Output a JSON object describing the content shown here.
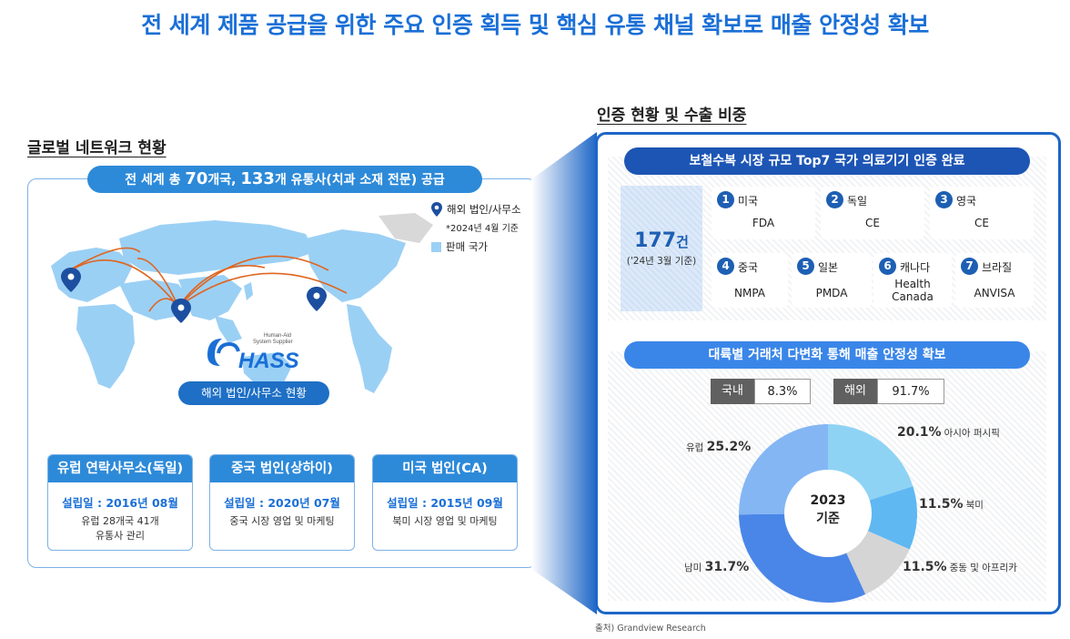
{
  "title": "전 세계 제품 공급을 위한 주요 인증 획득 및 핵심 유통 채널 확보로 매출 안정성 확보",
  "left": {
    "section_title": "글로벌 네트워크 현황",
    "supply_prefix": "전 세계 총 ",
    "countries": "70",
    "countries_unit": "개국, ",
    "distributors": "133",
    "supply_suffix": "개 유통사(치과 소재 전문) 공급",
    "legend_office": "해외 법인/사무소",
    "legend_note": "*2024년 4월 기준",
    "legend_sales": "판매 국가",
    "logo_tagline_1": "Human-Aid",
    "logo_tagline_2": "System Supplier",
    "logo_text": "HASS",
    "office_label": "해외 법인/사무소 현황",
    "offices": [
      {
        "name": "유럽 연락사무소(독일)",
        "date": "설립일 : 2016년 08월",
        "desc1": "유럽 28개국 41개",
        "desc2": "유통사 관리"
      },
      {
        "name": "중국 법인(상하이)",
        "date": "설립일 : 2020년 07월",
        "desc1": "중국 시장 영업 및 마케팅",
        "desc2": ""
      },
      {
        "name": "미국 법인(CA)",
        "date": "설립일 : 2015년 09월",
        "desc1": "북미 시장 영업 및 마케팅",
        "desc2": ""
      }
    ]
  },
  "right": {
    "section_title": "인증 현황 및 수출 비중",
    "cert_title": "보철수복 시장 규모 Top7 국가 의료기기 인증 완료",
    "count": "177",
    "count_unit": "건",
    "count_note": "('24년 3월 기준)",
    "certs": [
      {
        "no": "1",
        "country": "미국",
        "cert": "FDA"
      },
      {
        "no": "2",
        "country": "독일",
        "cert": "CE"
      },
      {
        "no": "3",
        "country": "영국",
        "cert": "CE"
      },
      {
        "no": "4",
        "country": "중국",
        "cert": "NMPA"
      },
      {
        "no": "5",
        "country": "일본",
        "cert": "PMDA"
      },
      {
        "no": "6",
        "country": "캐나다",
        "cert_line1": "Health",
        "cert_line2": "Canada"
      },
      {
        "no": "7",
        "country": "브라질",
        "cert": "ANVISA"
      }
    ],
    "sales_title": "대륙별 거래처 다변화 통해 매출 안정성 확보",
    "domestic_label": "국내",
    "domestic_value": "8.3%",
    "overseas_label": "해외",
    "overseas_value": "91.7%",
    "donut_center_1": "2023",
    "donut_center_2": "기준",
    "source": "출처) Grandview Research"
  },
  "chart_data": {
    "type": "pie",
    "categories": [
      "아시아 퍼시픽",
      "북미",
      "중동 및 아프리카",
      "남미",
      "유럽"
    ],
    "values": [
      20.1,
      11.5,
      11.5,
      31.7,
      25.2
    ],
    "labels": [
      "20.1%",
      "11.5%",
      "11.5%",
      "31.7%",
      "25.2%"
    ],
    "colors": [
      "#8fd3f4",
      "#5fb8f2",
      "#d5d5d5",
      "#4a86e8",
      "#84b6f4"
    ],
    "center_text": "2023 기준"
  }
}
